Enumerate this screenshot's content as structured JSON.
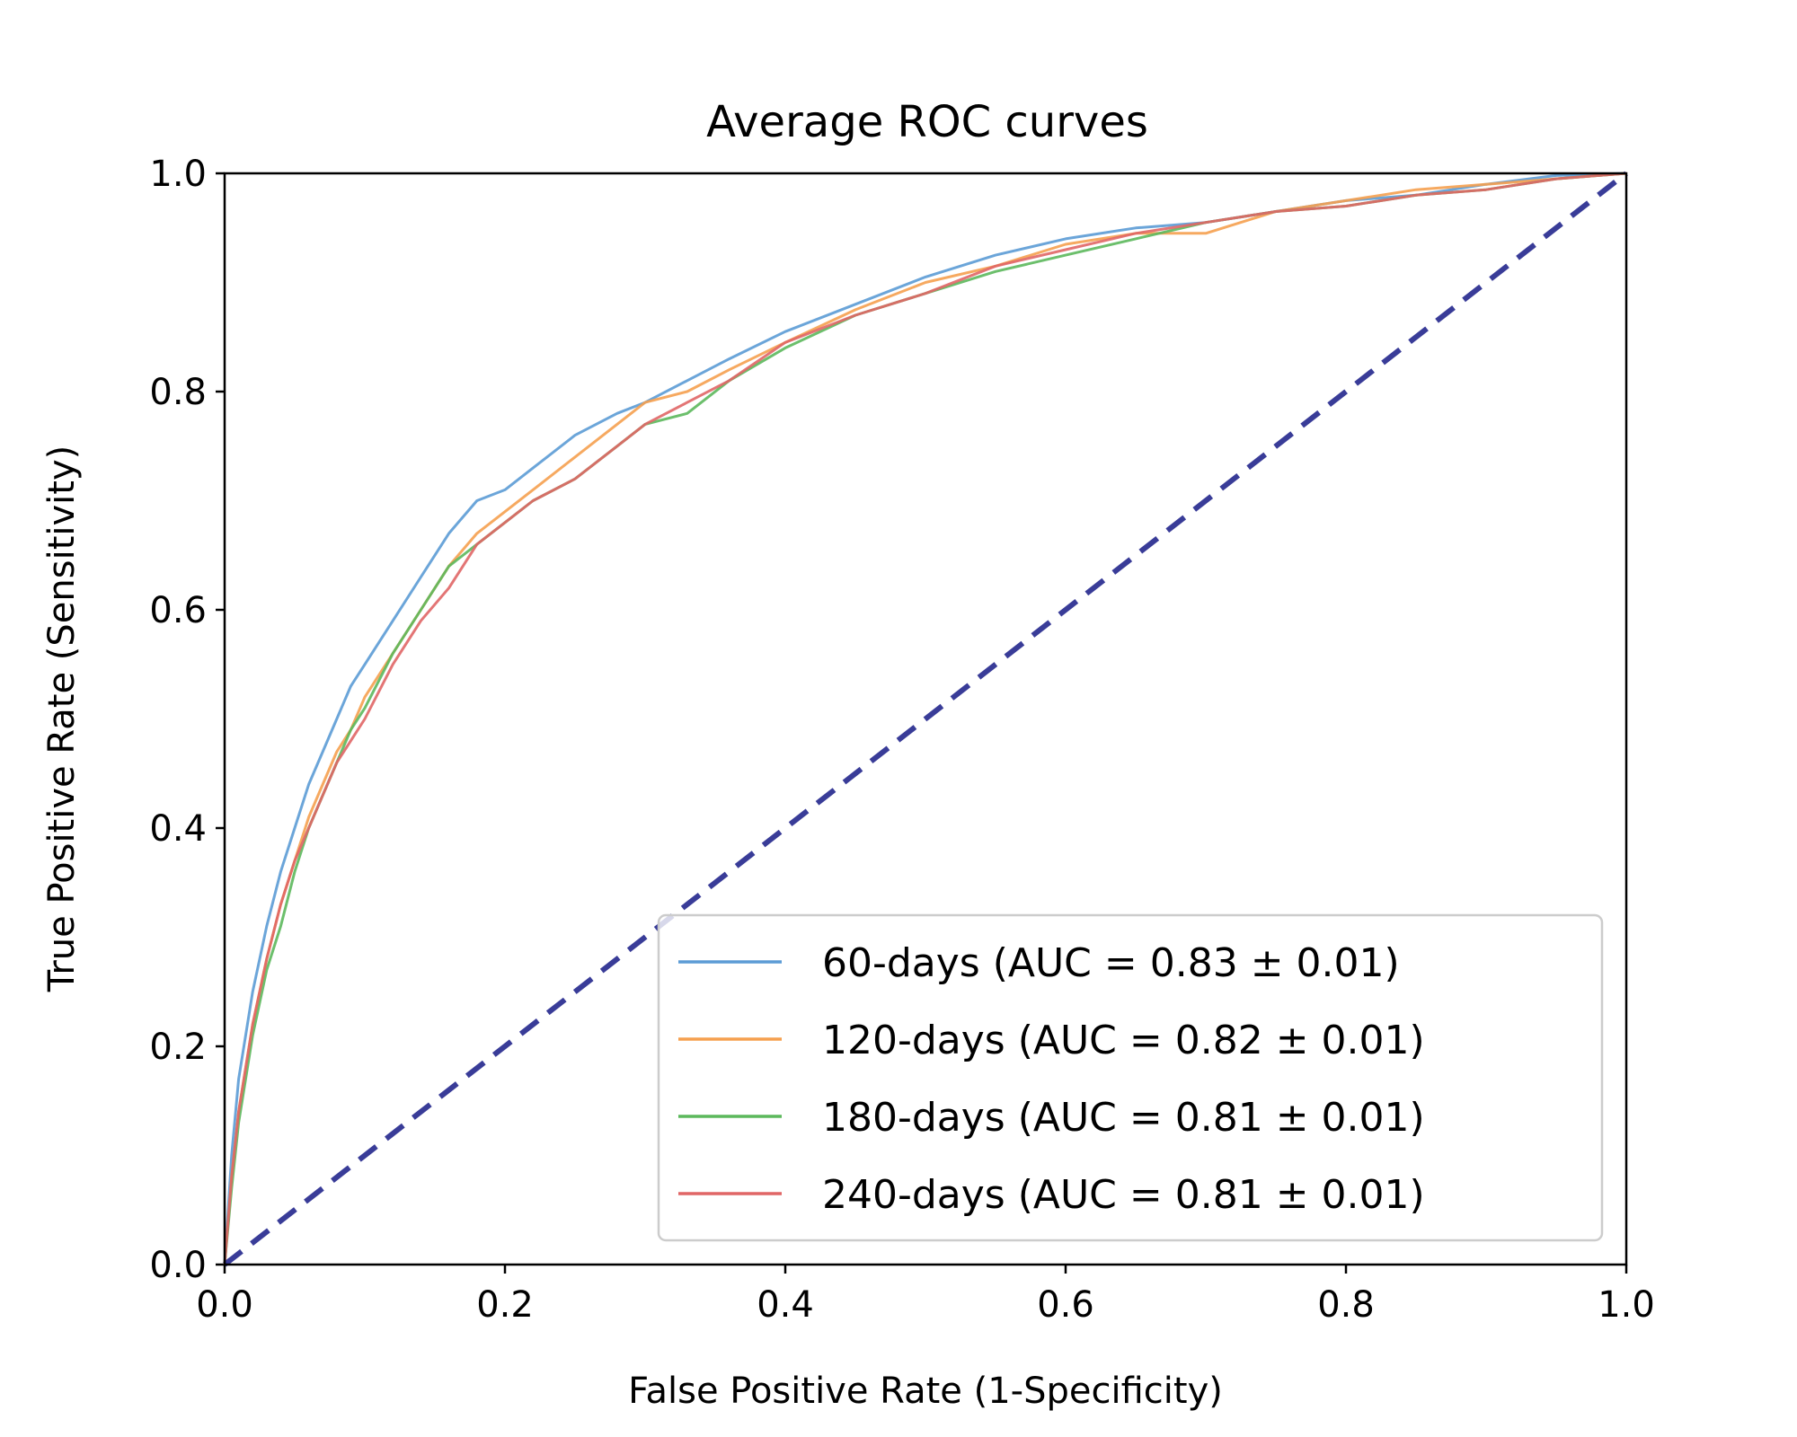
{
  "chart_data": {
    "type": "line",
    "title": "Average ROC curves",
    "xlabel": "False Positive Rate (1-Specificity)",
    "ylabel": "True Positive Rate (Sensitivity)",
    "xlim": [
      0.0,
      1.0
    ],
    "ylim": [
      0.0,
      1.0
    ],
    "xticks": [
      "0.0",
      "0.2",
      "0.4",
      "0.6",
      "0.8",
      "1.0"
    ],
    "yticks": [
      "0.0",
      "0.2",
      "0.4",
      "0.6",
      "0.8",
      "1.0"
    ],
    "grid": false,
    "legend_position": "lower-right",
    "diagonal": {
      "color": "#2E3192",
      "style": "dashed",
      "x": [
        0,
        1
      ],
      "y": [
        0,
        1
      ]
    },
    "series": [
      {
        "name": "60-days (AUC = 0.83 ± 0.01)",
        "color": "#5B9BD5",
        "x": [
          0,
          0.005,
          0.01,
          0.02,
          0.03,
          0.04,
          0.05,
          0.06,
          0.07,
          0.08,
          0.09,
          0.1,
          0.12,
          0.14,
          0.16,
          0.18,
          0.2,
          0.22,
          0.25,
          0.28,
          0.3,
          0.33,
          0.36,
          0.4,
          0.45,
          0.5,
          0.55,
          0.6,
          0.65,
          0.7,
          0.75,
          0.8,
          0.85,
          0.9,
          0.95,
          1.0
        ],
        "y": [
          0,
          0.1,
          0.17,
          0.25,
          0.31,
          0.36,
          0.4,
          0.44,
          0.47,
          0.5,
          0.53,
          0.55,
          0.59,
          0.63,
          0.67,
          0.7,
          0.71,
          0.73,
          0.76,
          0.78,
          0.79,
          0.81,
          0.83,
          0.855,
          0.88,
          0.905,
          0.925,
          0.94,
          0.95,
          0.955,
          0.965,
          0.975,
          0.98,
          0.99,
          0.998,
          1.0
        ]
      },
      {
        "name": "120-days (AUC = 0.82 ± 0.01)",
        "color": "#F5A04F",
        "x": [
          0,
          0.005,
          0.01,
          0.02,
          0.03,
          0.04,
          0.05,
          0.06,
          0.07,
          0.08,
          0.09,
          0.1,
          0.12,
          0.14,
          0.16,
          0.18,
          0.2,
          0.22,
          0.25,
          0.28,
          0.3,
          0.33,
          0.36,
          0.4,
          0.45,
          0.5,
          0.55,
          0.6,
          0.65,
          0.7,
          0.75,
          0.8,
          0.85,
          0.9,
          0.95,
          1.0
        ],
        "y": [
          0,
          0.08,
          0.14,
          0.22,
          0.28,
          0.33,
          0.37,
          0.41,
          0.44,
          0.47,
          0.49,
          0.52,
          0.56,
          0.6,
          0.64,
          0.67,
          0.69,
          0.71,
          0.74,
          0.77,
          0.79,
          0.8,
          0.82,
          0.845,
          0.875,
          0.9,
          0.915,
          0.935,
          0.945,
          0.945,
          0.965,
          0.975,
          0.985,
          0.99,
          0.995,
          1.0
        ]
      },
      {
        "name": "180-days (AUC = 0.81 ± 0.01)",
        "color": "#5CB85C",
        "x": [
          0,
          0.005,
          0.01,
          0.02,
          0.03,
          0.04,
          0.05,
          0.06,
          0.07,
          0.08,
          0.09,
          0.1,
          0.12,
          0.14,
          0.16,
          0.18,
          0.2,
          0.22,
          0.25,
          0.28,
          0.3,
          0.33,
          0.36,
          0.4,
          0.45,
          0.5,
          0.55,
          0.6,
          0.65,
          0.7,
          0.75,
          0.8,
          0.85,
          0.9,
          0.95,
          1.0
        ],
        "y": [
          0,
          0.07,
          0.13,
          0.21,
          0.27,
          0.31,
          0.36,
          0.4,
          0.43,
          0.46,
          0.49,
          0.51,
          0.56,
          0.6,
          0.64,
          0.66,
          0.68,
          0.7,
          0.72,
          0.75,
          0.77,
          0.78,
          0.81,
          0.84,
          0.87,
          0.89,
          0.91,
          0.925,
          0.94,
          0.955,
          0.965,
          0.97,
          0.98,
          0.985,
          0.995,
          1.0
        ]
      },
      {
        "name": "240-days (AUC = 0.81 ± 0.01)",
        "color": "#E06666",
        "x": [
          0,
          0.005,
          0.01,
          0.02,
          0.03,
          0.04,
          0.05,
          0.06,
          0.07,
          0.08,
          0.09,
          0.1,
          0.12,
          0.14,
          0.16,
          0.18,
          0.2,
          0.22,
          0.25,
          0.28,
          0.3,
          0.33,
          0.36,
          0.4,
          0.45,
          0.5,
          0.55,
          0.6,
          0.65,
          0.7,
          0.75,
          0.8,
          0.85,
          0.9,
          0.95,
          1.0
        ],
        "y": [
          0,
          0.08,
          0.14,
          0.22,
          0.28,
          0.33,
          0.37,
          0.4,
          0.43,
          0.46,
          0.48,
          0.5,
          0.55,
          0.59,
          0.62,
          0.66,
          0.68,
          0.7,
          0.72,
          0.75,
          0.77,
          0.79,
          0.81,
          0.845,
          0.87,
          0.89,
          0.915,
          0.93,
          0.945,
          0.955,
          0.965,
          0.97,
          0.98,
          0.985,
          0.995,
          1.0
        ]
      }
    ]
  }
}
